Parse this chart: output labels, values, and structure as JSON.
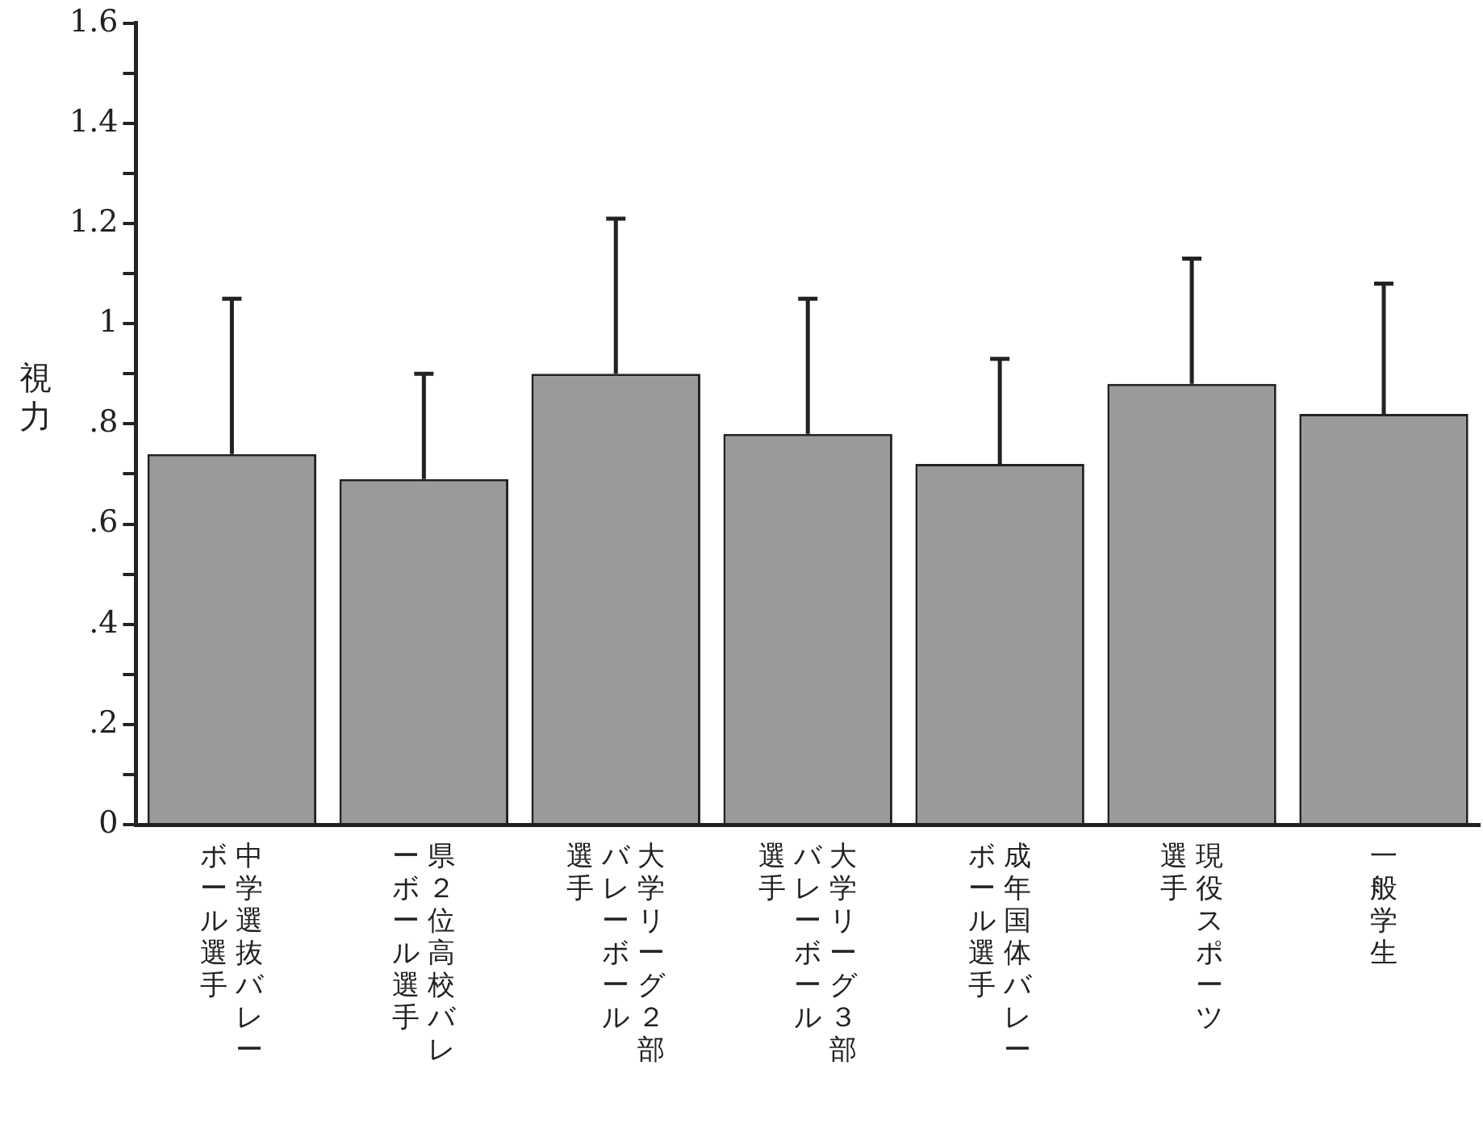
{
  "chart_data": {
    "type": "bar",
    "ylabel": "視力",
    "categories": [
      "中学選抜バレーボール選手",
      "県２位高校バレーボール選手",
      "大学リーグ２部バレーボール選手",
      "大学リーグ３部バレーボール選手",
      "成年国体バレーボール選手",
      "現役スポーツ選手",
      "一般学生"
    ],
    "values": [
      0.74,
      0.69,
      0.9,
      0.78,
      0.72,
      0.88,
      0.82
    ],
    "errors": [
      [
        0.74,
        1.05
      ],
      [
        0.69,
        0.9
      ],
      [
        0.9,
        1.21
      ],
      [
        0.78,
        1.05
      ],
      [
        0.72,
        0.93
      ],
      [
        0.88,
        1.13
      ],
      [
        0.82,
        1.08
      ]
    ],
    "color": "#9a9a9a",
    "ylim": [
      0,
      1.6
    ],
    "yticks": [
      0,
      {
        "value": 0.1,
        "label": null
      },
      {
        "value": 0.2,
        "label": ".2"
      },
      {
        "value": 0.3,
        "label": null
      },
      {
        "value": 0.4,
        "label": ".4"
      },
      {
        "value": 0.5,
        "label": null
      },
      {
        "value": 0.6,
        "label": ".6"
      },
      {
        "value": 0.7,
        "label": null
      },
      {
        "value": 0.8,
        "label": ".8"
      },
      {
        "value": 0.9,
        "label": null
      },
      1,
      {
        "value": 1.1,
        "label": null
      },
      1.2,
      {
        "value": 1.3,
        "label": null
      },
      1.4,
      {
        "value": 1.5,
        "label": null
      },
      1.6
    ],
    "grid": false,
    "legend": false
  }
}
